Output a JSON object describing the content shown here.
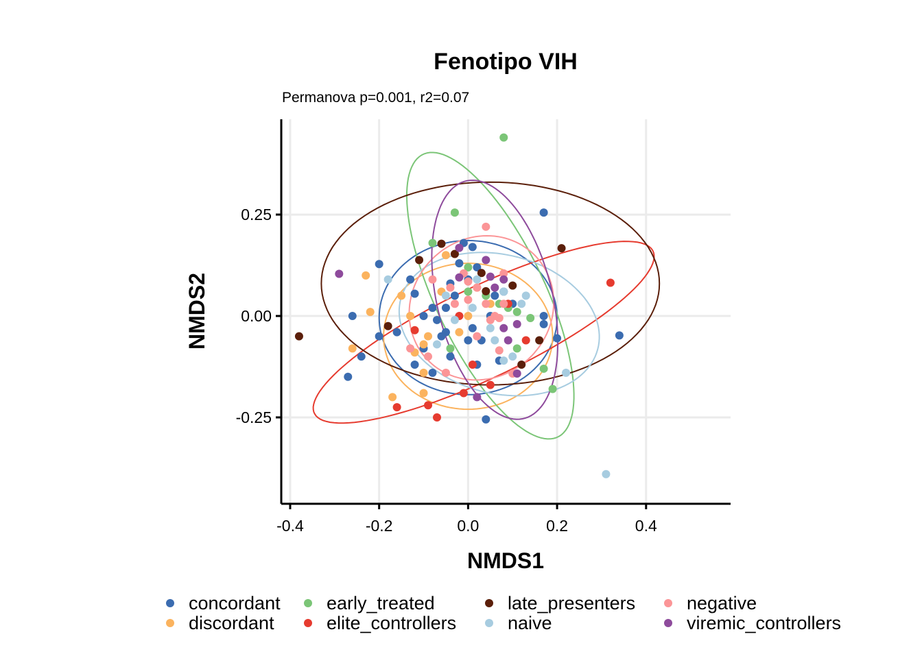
{
  "chart_data": {
    "type": "scatter",
    "title": "Fenotipo VIH",
    "subtitle": "Permanova p=0.001, r2=0.07",
    "xlabel": "NMDS1",
    "ylabel": "NMDS2",
    "xlim": [
      -0.42,
      0.59
    ],
    "ylim": [
      -0.463,
      0.485
    ],
    "x_ticks": [
      -0.4,
      -0.2,
      0.0,
      0.2,
      0.4
    ],
    "x_tick_labels": [
      "-0.4",
      "-0.2",
      "0.0",
      "0.2",
      "0.4"
    ],
    "y_ticks": [
      -0.25,
      0.0,
      0.25
    ],
    "y_tick_labels": [
      "-0.25",
      "0.00",
      "0.25"
    ],
    "grid": true,
    "legend_position": "bottom",
    "series": [
      {
        "name": "concordant",
        "color": "#3b6cb0",
        "ellipse": {
          "center": [
            0.0,
            -0.004
          ],
          "rx": 0.2,
          "ry": 0.19,
          "angle_deg": 0
        },
        "points": [
          [
            0.17,
            0.255
          ],
          [
            -0.2,
            0.128
          ],
          [
            -0.26,
            0.0
          ],
          [
            -0.2,
            -0.05
          ],
          [
            -0.24,
            -0.1
          ],
          [
            -0.27,
            -0.15
          ],
          [
            -0.13,
            0.09
          ],
          [
            -0.12,
            0.055
          ],
          [
            -0.1,
            0.0
          ],
          [
            -0.08,
            0.02
          ],
          [
            -0.07,
            -0.01
          ],
          [
            -0.06,
            -0.05
          ],
          [
            -0.05,
            0.02
          ],
          [
            -0.04,
            0.08
          ],
          [
            -0.03,
            0.05
          ],
          [
            -0.02,
            0.13
          ],
          [
            -0.01,
            0.18
          ],
          [
            0.0,
            0.09
          ],
          [
            0.01,
            0.17
          ],
          [
            0.02,
            0.12
          ],
          [
            0.01,
            -0.03
          ],
          [
            0.03,
            -0.06
          ],
          [
            0.05,
            0.0
          ],
          [
            0.06,
            0.05
          ],
          [
            0.07,
            -0.11
          ],
          [
            0.08,
            0.06
          ],
          [
            0.1,
            0.03
          ],
          [
            0.17,
            0.0
          ],
          [
            0.17,
            -0.02
          ],
          [
            0.2,
            -0.055
          ],
          [
            0.34,
            -0.048
          ],
          [
            0.04,
            -0.255
          ],
          [
            -0.16,
            -0.04
          ],
          [
            -0.1,
            -0.08
          ],
          [
            -0.04,
            -0.1
          ],
          [
            0.02,
            -0.12
          ],
          [
            -0.12,
            -0.12
          ],
          [
            -0.08,
            -0.14
          ],
          [
            -0.05,
            -0.04
          ],
          [
            0.0,
            -0.06
          ]
        ]
      },
      {
        "name": "discordant",
        "color": "#fbb35e",
        "ellipse": {
          "center": [
            0.0,
            -0.05
          ],
          "rx": 0.19,
          "ry": 0.18,
          "angle_deg": 0
        },
        "points": [
          [
            -0.23,
            0.1
          ],
          [
            -0.22,
            0.01
          ],
          [
            -0.26,
            -0.08
          ],
          [
            -0.17,
            -0.2
          ],
          [
            -0.1,
            -0.19
          ],
          [
            -0.1,
            -0.14
          ],
          [
            -0.13,
            0.0
          ],
          [
            -0.15,
            0.05
          ],
          [
            -0.06,
            0.06
          ],
          [
            -0.05,
            0.15
          ],
          [
            -0.12,
            -0.09
          ],
          [
            -0.09,
            -0.05
          ],
          [
            -0.02,
            -0.04
          ],
          [
            0.0,
            0.0
          ],
          [
            0.02,
            0.07
          ],
          [
            0.05,
            0.03
          ],
          [
            -0.1,
            -0.07
          ]
        ]
      },
      {
        "name": "early_treated",
        "color": "#7bc577",
        "ellipse": {
          "center": [
            0.05,
            0.05
          ],
          "rx": 0.38,
          "ry": 0.125,
          "angle_deg": -67
        },
        "points": [
          [
            0.08,
            0.44
          ],
          [
            -0.03,
            0.255
          ],
          [
            -0.08,
            0.18
          ],
          [
            0.0,
            0.12
          ],
          [
            0.04,
            0.05
          ],
          [
            0.07,
            0.03
          ],
          [
            0.09,
            0.02
          ],
          [
            0.11,
            0.01
          ],
          [
            0.14,
            -0.005
          ],
          [
            0.11,
            -0.08
          ],
          [
            0.17,
            -0.13
          ],
          [
            0.19,
            -0.18
          ],
          [
            -0.04,
            -0.08
          ],
          [
            0.0,
            0.06
          ]
        ]
      },
      {
        "name": "elite_controllers",
        "color": "#e63b2f",
        "ellipse": {
          "center": [
            0.035,
            -0.04
          ],
          "rx": 0.43,
          "ry": 0.11,
          "angle_deg": 28
        },
        "points": [
          [
            0.32,
            0.082
          ],
          [
            -0.12,
            -0.035
          ],
          [
            -0.16,
            -0.225
          ],
          [
            -0.09,
            -0.22
          ],
          [
            -0.07,
            -0.25
          ],
          [
            -0.01,
            -0.19
          ],
          [
            0.05,
            -0.17
          ],
          [
            0.01,
            -0.12
          ],
          [
            0.13,
            -0.06
          ],
          [
            0.09,
            0.03
          ],
          [
            -0.02,
            0.0
          ]
        ]
      },
      {
        "name": "late_presenters",
        "color": "#5b1f0a",
        "ellipse": {
          "center": [
            0.05,
            0.08
          ],
          "rx": 0.38,
          "ry": 0.25,
          "angle_deg": 0
        },
        "points": [
          [
            -0.38,
            -0.05
          ],
          [
            -0.18,
            -0.025
          ],
          [
            -0.11,
            0.138
          ],
          [
            -0.06,
            0.178
          ],
          [
            -0.03,
            0.153
          ],
          [
            0.03,
            0.106
          ],
          [
            0.04,
            0.061
          ],
          [
            0.1,
            0.075
          ],
          [
            0.21,
            0.167
          ],
          [
            0.16,
            -0.06
          ],
          [
            0.12,
            -0.12
          ]
        ]
      },
      {
        "name": "naive",
        "color": "#a7cce0",
        "ellipse": {
          "center": [
            0.07,
            -0.02
          ],
          "rx": 0.23,
          "ry": 0.17,
          "angle_deg": -18
        },
        "points": [
          [
            -0.18,
            0.09
          ],
          [
            0.31,
            -0.39
          ],
          [
            0.22,
            -0.14
          ],
          [
            0.13,
            0.05
          ],
          [
            0.12,
            0.03
          ],
          [
            0.08,
            0.06
          ],
          [
            0.05,
            -0.03
          ],
          [
            0.06,
            -0.06
          ],
          [
            0.01,
            0.02
          ],
          [
            -0.03,
            -0.01
          ],
          [
            -0.05,
            0.05
          ],
          [
            -0.07,
            -0.07
          ],
          [
            0.08,
            -0.11
          ],
          [
            0.02,
            0.09
          ],
          [
            0.1,
            -0.1
          ]
        ]
      },
      {
        "name": "negative",
        "color": "#fb9597",
        "ellipse": {
          "center": [
            0.03,
            0.02
          ],
          "rx": 0.16,
          "ry": 0.18,
          "angle_deg": -20
        },
        "points": [
          [
            0.04,
            0.22
          ],
          [
            -0.08,
            0.09
          ],
          [
            -0.04,
            0.07
          ],
          [
            -0.01,
            0.105
          ],
          [
            0.0,
            0.085
          ],
          [
            0.02,
            0.07
          ],
          [
            0.04,
            0.03
          ],
          [
            0.06,
            0.0
          ],
          [
            0.07,
            -0.005
          ],
          [
            0.08,
            0.105
          ],
          [
            0.08,
            0.03
          ],
          [
            -0.03,
            0.03
          ],
          [
            0.05,
            -0.01
          ],
          [
            -0.13,
            -0.08
          ],
          [
            -0.05,
            -0.14
          ],
          [
            -0.09,
            -0.1
          ],
          [
            0.07,
            -0.085
          ],
          [
            0.1,
            -0.142
          ],
          [
            0.0,
            0.04
          ],
          [
            0.02,
            -0.05
          ]
        ]
      },
      {
        "name": "viremic_controllers",
        "color": "#8e4b9c",
        "ellipse": {
          "center": [
            0.06,
            0.04
          ],
          "rx": 0.3,
          "ry": 0.13,
          "angle_deg": -78
        },
        "points": [
          [
            -0.29,
            0.104
          ],
          [
            -0.02,
            0.168
          ],
          [
            0.04,
            0.138
          ],
          [
            -0.02,
            0.095
          ],
          [
            0.05,
            0.097
          ],
          [
            0.08,
            0.09
          ],
          [
            0.06,
            0.07
          ],
          [
            0.11,
            -0.02
          ],
          [
            0.09,
            -0.06
          ],
          [
            0.02,
            -0.2
          ],
          [
            0.11,
            -0.142
          ],
          [
            0.08,
            -0.03
          ]
        ]
      }
    ]
  }
}
